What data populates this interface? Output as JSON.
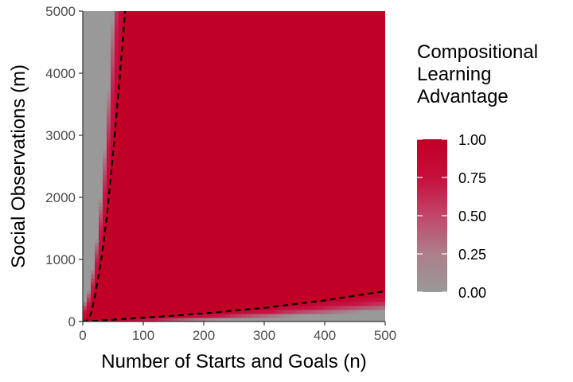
{
  "chart_data": {
    "type": "heatmap",
    "xlabel": "Number of Starts and Goals (n)",
    "ylabel": "Social Observations (m)",
    "xlim": [
      0,
      500
    ],
    "ylim": [
      0,
      5000
    ],
    "x_ticks": [
      0,
      100,
      200,
      300,
      400,
      500
    ],
    "y_ticks": [
      0,
      1000,
      2000,
      3000,
      4000,
      5000
    ],
    "x_tick_labels": [
      "0",
      "100",
      "200",
      "300",
      "400",
      "500"
    ],
    "y_tick_labels": [
      "0",
      "1000",
      "2000",
      "3000",
      "4000",
      "5000"
    ],
    "legend": {
      "title_lines": [
        "Compositional",
        "Learning",
        "Advantage"
      ],
      "placement": "right",
      "breaks": [
        0,
        0.25,
        0.5,
        0.75,
        1
      ],
      "break_labels": [
        "0.00",
        "0.25",
        "0.50",
        "0.75",
        "1.00"
      ],
      "low_color": "#999999",
      "high_color": "#c00024"
    },
    "dashed_boundaries": [
      {
        "points": [
          [
            0,
            0
          ],
          [
            5,
            0
          ],
          [
            10,
            40
          ],
          [
            15,
            170
          ],
          [
            20,
            400
          ],
          [
            30,
            950
          ],
          [
            40,
            1700
          ],
          [
            50,
            2700
          ],
          [
            60,
            3800
          ],
          [
            70,
            5000
          ]
        ]
      },
      {
        "points": [
          [
            0,
            0
          ],
          [
            100,
            60
          ],
          [
            200,
            130
          ],
          [
            300,
            220
          ],
          [
            400,
            340
          ],
          [
            500,
            490
          ]
        ]
      }
    ],
    "colors": {
      "panel_background": "#999999",
      "dashed_line": "#000000",
      "axis_line": "#333333"
    }
  }
}
